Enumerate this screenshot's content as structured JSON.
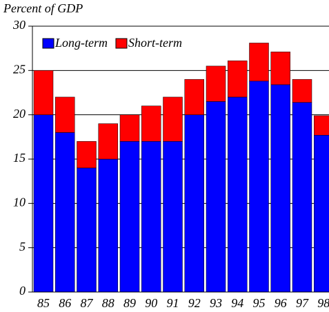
{
  "chart_data": {
    "type": "stacked_bar",
    "y_axis_label": "Percent of GDP",
    "categories": [
      "85",
      "86",
      "87",
      "88",
      "89",
      "90",
      "91",
      "92",
      "93",
      "94",
      "95",
      "96",
      "97",
      "98"
    ],
    "series": [
      {
        "name": "Long-term",
        "color": "#0000ff",
        "values": [
          20,
          18,
          14,
          15,
          17,
          17,
          17,
          20,
          21.5,
          22,
          23.8,
          23.4,
          21.4,
          17.7
        ]
      },
      {
        "name": "Short-term",
        "color": "#ff0000",
        "values": [
          5,
          4,
          3,
          4,
          3,
          4,
          5,
          4,
          4,
          4.1,
          4.3,
          3.7,
          2.6,
          2.2
        ]
      }
    ],
    "ylim": [
      0,
      30
    ],
    "yticks": [
      0,
      5,
      10,
      15,
      20,
      25,
      30
    ],
    "grid": true,
    "legend": "top-left"
  }
}
